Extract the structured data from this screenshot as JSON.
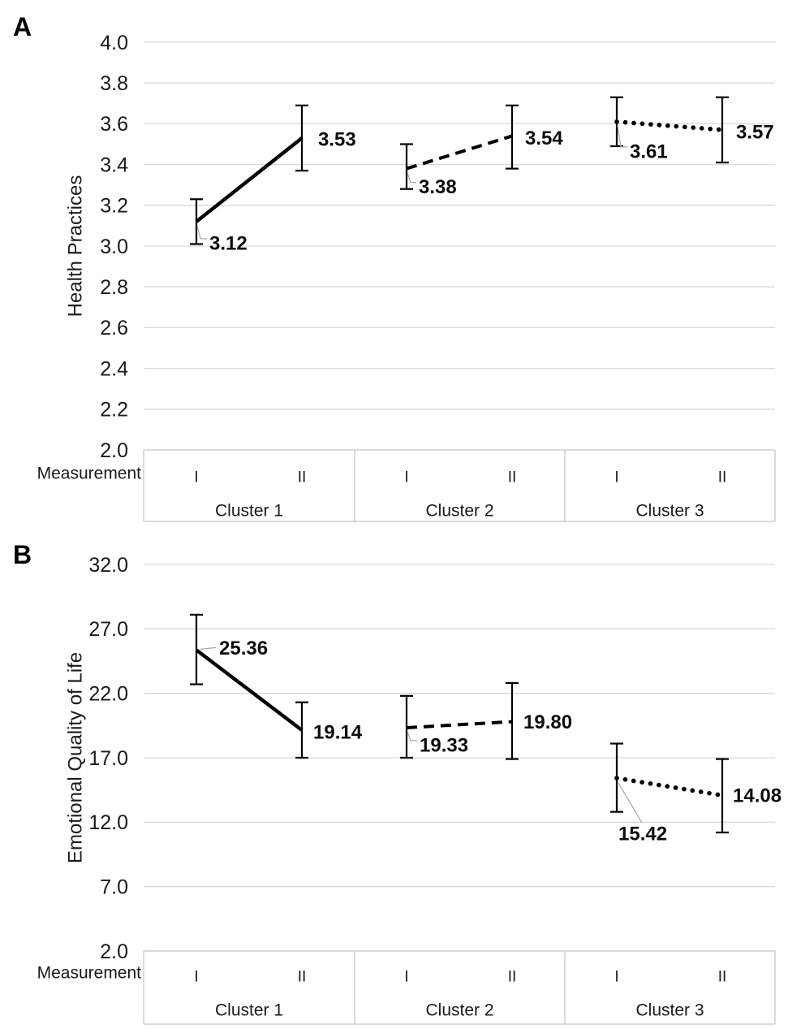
{
  "figure": {
    "background": "#ffffff",
    "panel_letters": [
      "A",
      "B"
    ]
  },
  "colors": {
    "series_line": "#000000",
    "error_bar": "#000000",
    "gridline": "#d9d9d9",
    "box_border": "#c8c8c8",
    "leader_line": "#a6a6a6",
    "text": "#1a1a1a"
  },
  "chart_data": [
    {
      "type": "line",
      "panel": "A",
      "title": "",
      "ylabel": "Health Practices",
      "xlabel": "Measurement",
      "ylim": [
        2.0,
        4.0
      ],
      "ytick_step": 0.2,
      "ytick_decimals": 1,
      "yticks": [
        "4.0",
        "3.8",
        "3.6",
        "3.4",
        "3.2",
        "3.0",
        "2.8",
        "2.6",
        "2.4",
        "2.2",
        "2.0"
      ],
      "grid": true,
      "legend": "none",
      "x_categories": [
        "I",
        "II"
      ],
      "x_groups": [
        "Cluster 1",
        "Cluster 2",
        "Cluster 3"
      ],
      "series": [
        {
          "name": "Cluster 1",
          "line_style": "solid",
          "points": [
            {
              "group": "Cluster 1",
              "measurement": "I",
              "value": 3.12,
              "err_low": 3.01,
              "err_high": 3.23,
              "label": "3.12",
              "label_side": "below-right",
              "label_dx": 16,
              "label_dy": 26,
              "leader": "elbow"
            },
            {
              "group": "Cluster 1",
              "measurement": "II",
              "value": 3.53,
              "err_low": 3.37,
              "err_high": 3.69,
              "label": "3.53",
              "label_side": "right",
              "label_dx": 20,
              "label_dy": 1,
              "leader": "none"
            }
          ]
        },
        {
          "name": "Cluster 2",
          "line_style": "dashed",
          "points": [
            {
              "group": "Cluster 2",
              "measurement": "I",
              "value": 3.38,
              "err_low": 3.28,
              "err_high": 3.5,
              "label": "3.38",
              "label_side": "below-right",
              "label_dx": 15,
              "label_dy": 22,
              "leader": "elbow"
            },
            {
              "group": "Cluster 2",
              "measurement": "II",
              "value": 3.54,
              "err_low": 3.38,
              "err_high": 3.69,
              "label": "3.54",
              "label_side": "right",
              "label_dx": 16,
              "label_dy": 2,
              "leader": "none"
            }
          ]
        },
        {
          "name": "Cluster 3",
          "line_style": "dotted",
          "points": [
            {
              "group": "Cluster 3",
              "measurement": "I",
              "value": 3.61,
              "err_low": 3.49,
              "err_high": 3.73,
              "label": "3.61",
              "label_side": "below-right",
              "label_dx": 16,
              "label_dy": 36,
              "leader": "elbow"
            },
            {
              "group": "Cluster 3",
              "measurement": "II",
              "value": 3.57,
              "err_low": 3.41,
              "err_high": 3.73,
              "label": "3.57",
              "label_side": "right",
              "label_dx": 17,
              "label_dy": 2,
              "leader": "none"
            }
          ]
        }
      ]
    },
    {
      "type": "line",
      "panel": "B",
      "title": "",
      "ylabel": "Emotional Quality of Life",
      "xlabel": "Measurement",
      "ylim": [
        2.0,
        32.0
      ],
      "ytick_step": 5.0,
      "ytick_decimals": 1,
      "yticks": [
        "32.0",
        "27.0",
        "22.0",
        "17.0",
        "12.0",
        "7.0",
        "2.0"
      ],
      "grid": true,
      "legend": "none",
      "x_categories": [
        "I",
        "II"
      ],
      "x_groups": [
        "Cluster 1",
        "Cluster 2",
        "Cluster 3"
      ],
      "series": [
        {
          "name": "Cluster 1",
          "line_style": "solid",
          "points": [
            {
              "group": "Cluster 1",
              "measurement": "I",
              "value": 25.36,
              "err_low": 22.7,
              "err_high": 28.1,
              "label": "25.36",
              "label_side": "right",
              "label_dx": 28,
              "label_dy": -3,
              "leader": "line"
            },
            {
              "group": "Cluster 1",
              "measurement": "II",
              "value": 19.14,
              "err_low": 17.0,
              "err_high": 21.3,
              "label": "19.14",
              "label_side": "right",
              "label_dx": 14,
              "label_dy": 2,
              "leader": "none"
            }
          ]
        },
        {
          "name": "Cluster 2",
          "line_style": "dashed",
          "points": [
            {
              "group": "Cluster 2",
              "measurement": "I",
              "value": 19.33,
              "err_low": 17.0,
              "err_high": 21.8,
              "label": "19.33",
              "label_side": "below-right",
              "label_dx": 16,
              "label_dy": 21,
              "leader": "elbow"
            },
            {
              "group": "Cluster 2",
              "measurement": "II",
              "value": 19.8,
              "err_low": 16.9,
              "err_high": 22.8,
              "label": "19.80",
              "label_side": "right",
              "label_dx": 14,
              "label_dy": 0,
              "leader": "none"
            }
          ]
        },
        {
          "name": "Cluster 3",
          "line_style": "dotted",
          "points": [
            {
              "group": "Cluster 3",
              "measurement": "I",
              "value": 15.42,
              "err_low": 12.8,
              "err_high": 18.1,
              "label": "15.42",
              "label_side": "below",
              "label_dx": 2,
              "label_dy": 68,
              "leader": "long"
            },
            {
              "group": "Cluster 3",
              "measurement": "II",
              "value": 14.08,
              "err_low": 11.2,
              "err_high": 16.9,
              "label": "14.08",
              "label_side": "right",
              "label_dx": 13,
              "label_dy": 0,
              "leader": "none"
            }
          ]
        }
      ]
    }
  ]
}
